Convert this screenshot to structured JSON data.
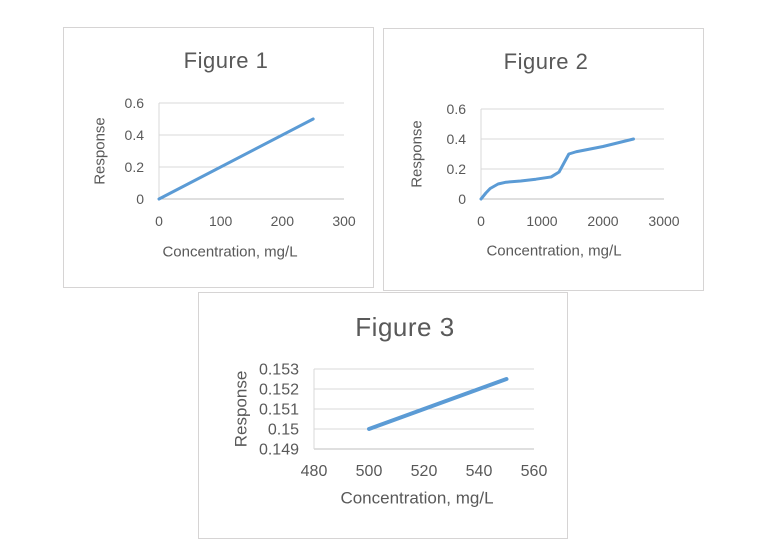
{
  "style": {
    "line_color": "#5b9bd5",
    "gridline_color": "#d9d9d9",
    "axis_line_color": "#bfbfbf",
    "text_color": "#595959",
    "panel_border_color": "#d6d4d4",
    "background_color": "#ffffff"
  },
  "chart_data": [
    {
      "type": "line",
      "title": "Figure 1",
      "xlabel": "Concentration, mg/L",
      "ylabel": "Response",
      "xlim": [
        0,
        300
      ],
      "ylim": [
        0,
        0.6
      ],
      "x_ticks": [
        "0",
        "100",
        "200",
        "300"
      ],
      "x_tick_values": [
        0,
        100,
        200,
        300
      ],
      "y_ticks": [
        "0",
        "0.2",
        "0.4",
        "0.6"
      ],
      "y_tick_values": [
        0,
        0.2,
        0.4,
        0.6
      ],
      "grid": "horizontal",
      "legend": "none",
      "series": [
        {
          "name": "Response",
          "x": [
            0,
            250
          ],
          "y": [
            0,
            0.5
          ]
        }
      ]
    },
    {
      "type": "line",
      "title": "Figure 2",
      "xlabel": "Concentration, mg/L",
      "ylabel": "Response",
      "xlim": [
        0,
        3000
      ],
      "ylim": [
        0,
        0.6
      ],
      "x_ticks": [
        "0",
        "1000",
        "2000",
        "3000"
      ],
      "x_tick_values": [
        0,
        1000,
        2000,
        3000
      ],
      "y_ticks": [
        "0",
        "0.2",
        "0.4",
        "0.6"
      ],
      "y_tick_values": [
        0,
        0.2,
        0.4,
        0.6
      ],
      "grid": "horizontal",
      "legend": "none",
      "series": [
        {
          "name": "Response",
          "x": [
            0,
            80,
            150,
            280,
            410,
            650,
            900,
            1150,
            1280,
            1360,
            1440,
            1560,
            2000,
            2500
          ],
          "y": [
            0,
            0.04,
            0.07,
            0.1,
            0.112,
            0.12,
            0.132,
            0.147,
            0.18,
            0.24,
            0.3,
            0.315,
            0.35,
            0.4
          ]
        }
      ]
    },
    {
      "type": "line",
      "title": "Figure 3",
      "xlabel": "Concentration, mg/L",
      "ylabel": "Response",
      "xlim": [
        480,
        560
      ],
      "ylim": [
        0.149,
        0.153
      ],
      "x_ticks": [
        "480",
        "500",
        "520",
        "540",
        "560"
      ],
      "x_tick_values": [
        480,
        500,
        520,
        540,
        560
      ],
      "y_ticks": [
        "0.149",
        "0.15",
        "0.151",
        "0.152",
        "0.153"
      ],
      "y_tick_values": [
        0.149,
        0.15,
        0.151,
        0.152,
        0.153
      ],
      "grid": "horizontal",
      "legend": "none",
      "series": [
        {
          "name": "Response",
          "x": [
            500,
            550
          ],
          "y": [
            0.15,
            0.1525
          ]
        }
      ]
    }
  ]
}
